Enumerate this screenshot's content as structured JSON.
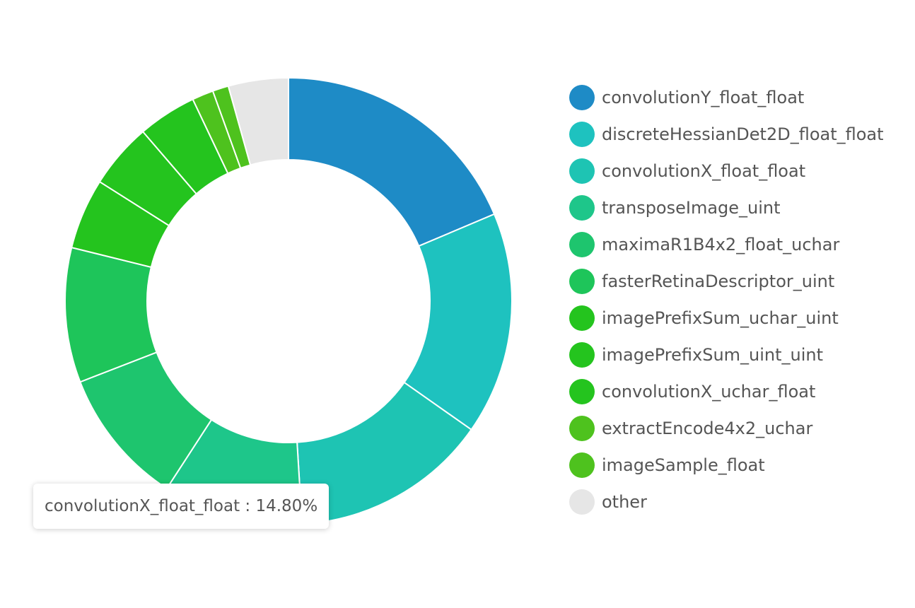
{
  "chart_data": {
    "type": "pie",
    "style": "donut",
    "categories": [
      "convolutionY_float_float",
      "discreteHessianDet2D_float_float",
      "convolutionX_float_float",
      "transposeImage_uint",
      "maximaR1B4x2_float_uchar",
      "fasterRetinaDescriptor_uint",
      "imagePrefixSum_uchar_uint",
      "imagePrefixSum_uint_uint",
      "convolutionX_uchar_float",
      "extractEncode4x2_uchar",
      "imageSample_float",
      "other"
    ],
    "values": [
      19.3,
      16.7,
      14.8,
      10.5,
      10.3,
      10.1,
      5.3,
      4.9,
      4.4,
      1.6,
      1.2,
      4.5
    ],
    "colors": [
      "#1e8bc6",
      "#1ec2bf",
      "#1ec4b3",
      "#1ec68a",
      "#1ec56e",
      "#1ec55a",
      "#24c41e",
      "#24c41e",
      "#24c41e",
      "#4ec21e",
      "#4ec21e",
      "#e6e6e6"
    ],
    "legend_position": "right"
  },
  "tooltip": {
    "text": "convolutionX_float_float : 14.80%"
  }
}
